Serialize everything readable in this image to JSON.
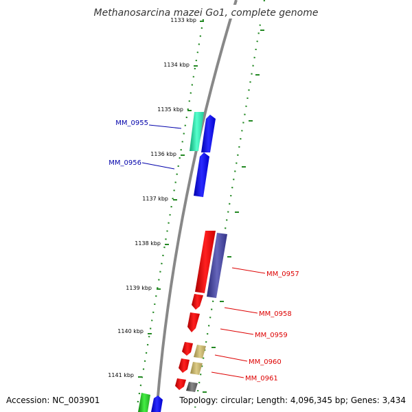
{
  "title": "Methanosarcina mazei Go1, complete genome",
  "footer": {
    "accession": "Accession: NC_003901",
    "summary": "Topology: circular; Length: 4,096,345 bp; Genes: 3,434"
  },
  "ticks": [
    {
      "label": "1133 kbp"
    },
    {
      "label": "1134 kbp"
    },
    {
      "label": "1135 kbp"
    },
    {
      "label": "1136 kbp"
    },
    {
      "label": "1137 kbp"
    },
    {
      "label": "1138 kbp"
    },
    {
      "label": "1139 kbp"
    },
    {
      "label": "1140 kbp"
    },
    {
      "label": "1141 kbp"
    }
  ],
  "genes": [
    {
      "label": "MM_0955",
      "color": "#0000aa"
    },
    {
      "label": "MM_0956",
      "color": "#0000aa"
    },
    {
      "label": "MM_0957",
      "color": "#dd0000"
    },
    {
      "label": "MM_0958",
      "color": "#dd0000"
    },
    {
      "label": "MM_0959",
      "color": "#dd0000"
    },
    {
      "label": "MM_0960",
      "color": "#dd0000"
    },
    {
      "label": "MM_0961",
      "color": "#dd0000"
    }
  ],
  "colors": {
    "backbone": "#888888",
    "tick": "#228822",
    "blue_feature": "#0000ee",
    "red_feature": "#ee0000",
    "teal_feature": "#22ddaa",
    "purple_feature": "#444499",
    "khaki_feature": "#bbaa66",
    "gray_feature": "#666666",
    "green_feature": "#22bb22"
  }
}
